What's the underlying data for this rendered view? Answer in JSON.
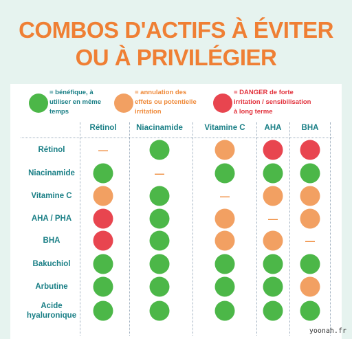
{
  "title": [
    "COMBOS D'ACTIFS À ÉVITER",
    "OU À PRIVILÉGIER"
  ],
  "legend": [
    {
      "color": "#4cb748",
      "text_color": "#1a7f86",
      "lines": [
        "= bénéfique, à",
        "utiliser en même",
        "temps"
      ]
    },
    {
      "color": "#f2a062",
      "text_color": "#ef8a3a",
      "lines": [
        "= annulation des",
        "effets ou potentielle",
        "irritation"
      ]
    },
    {
      "color": "#e8454f",
      "text_color": "#e2323c",
      "lines": [
        "= DANGER de forte",
        "irritation / sensibilisation",
        "à long terme"
      ]
    }
  ],
  "table": {
    "columns": [
      "Rétinol",
      "Niacinamide",
      "Vitamine C",
      "AHA",
      "BHA"
    ],
    "rows": [
      {
        "label": "Rétinol",
        "cells": [
          "—",
          "#4cb748",
          "#f2a062",
          "#e8454f",
          "#e8454f"
        ]
      },
      {
        "label": "Niacinamide",
        "cells": [
          "#4cb748",
          "—",
          "#4cb748",
          "#4cb748",
          "#4cb748"
        ]
      },
      {
        "label": "Vitamine C",
        "cells": [
          "#f2a062",
          "#4cb748",
          "—",
          "#f2a062",
          "#f2a062"
        ]
      },
      {
        "label": "AHA / PHA",
        "cells": [
          "#e8454f",
          "#4cb748",
          "#f2a062",
          "—",
          "#f2a062"
        ]
      },
      {
        "label": "BHA",
        "cells": [
          "#e8454f",
          "#4cb748",
          "#f2a062",
          "#f2a062",
          "—"
        ]
      },
      {
        "label": "Bakuchiol",
        "cells": [
          "#4cb748",
          "#4cb748",
          "#4cb748",
          "#4cb748",
          "#4cb748"
        ]
      },
      {
        "label": "Arbutine",
        "cells": [
          "#4cb748",
          "#4cb748",
          "#4cb748",
          "#4cb748",
          "#f2a062"
        ]
      },
      {
        "label": "Acide hyaluronique",
        "cells": [
          "#4cb748",
          "#4cb748",
          "#4cb748",
          "#4cb748",
          "#4cb748"
        ]
      }
    ]
  },
  "watermark": "yoonah.fr"
}
